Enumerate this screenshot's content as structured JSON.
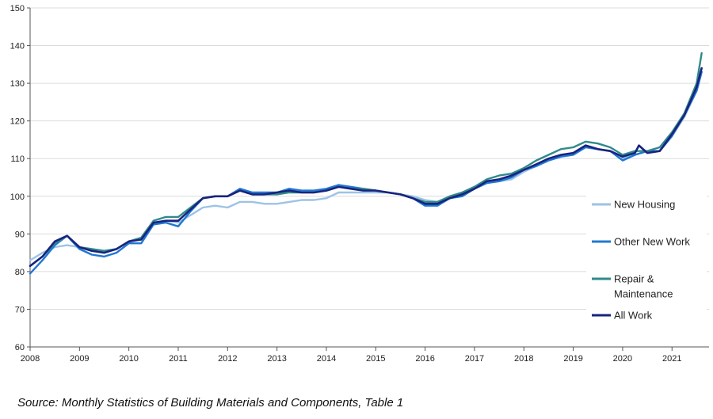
{
  "chart_data": {
    "type": "line",
    "x_range": [
      2008.0,
      2021.75
    ],
    "ylim": [
      60,
      150
    ],
    "y_ticks": [
      60,
      70,
      80,
      90,
      100,
      110,
      120,
      130,
      140,
      150
    ],
    "x_ticks": [
      2008,
      2009,
      2010,
      2011,
      2012,
      2013,
      2014,
      2015,
      2016,
      2017,
      2018,
      2019,
      2020,
      2021
    ],
    "x_tick_labels": [
      "2008",
      "2009",
      "2010",
      "2011",
      "2012",
      "2013",
      "2014",
      "2015",
      "2016",
      "2017",
      "2018",
      "2019",
      "2020",
      "2021"
    ],
    "grid": "horizontal",
    "legend_position": "right",
    "series": [
      {
        "name": "New Housing",
        "color": "#9dc3e6",
        "points": [
          [
            2008.0,
            83
          ],
          [
            2008.25,
            85
          ],
          [
            2008.5,
            86.5
          ],
          [
            2008.75,
            87
          ],
          [
            2009.0,
            86.5
          ],
          [
            2009.25,
            86
          ],
          [
            2009.5,
            85.5
          ],
          [
            2009.75,
            86
          ],
          [
            2010.0,
            88
          ],
          [
            2010.25,
            89
          ],
          [
            2010.5,
            93
          ],
          [
            2010.75,
            93.5
          ],
          [
            2011.0,
            93
          ],
          [
            2011.25,
            95
          ],
          [
            2011.5,
            97
          ],
          [
            2011.75,
            97.5
          ],
          [
            2012.0,
            97
          ],
          [
            2012.25,
            98.5
          ],
          [
            2012.5,
            98.5
          ],
          [
            2012.75,
            98
          ],
          [
            2013.0,
            98
          ],
          [
            2013.25,
            98.5
          ],
          [
            2013.5,
            99
          ],
          [
            2013.75,
            99
          ],
          [
            2014.0,
            99.5
          ],
          [
            2014.25,
            101
          ],
          [
            2014.5,
            101
          ],
          [
            2014.75,
            101
          ],
          [
            2015.0,
            101
          ],
          [
            2015.25,
            101
          ],
          [
            2015.5,
            100.5
          ],
          [
            2015.75,
            100
          ],
          [
            2016.0,
            99
          ],
          [
            2016.25,
            98.5
          ],
          [
            2016.5,
            99.5
          ],
          [
            2016.75,
            100.5
          ],
          [
            2017.0,
            102
          ],
          [
            2017.25,
            103.5
          ],
          [
            2017.5,
            104
          ],
          [
            2017.75,
            104.5
          ],
          [
            2018.0,
            106.5
          ],
          [
            2018.25,
            108
          ],
          [
            2018.5,
            109.5
          ],
          [
            2018.75,
            110.5
          ],
          [
            2019.0,
            111.5
          ],
          [
            2019.25,
            113
          ],
          [
            2019.5,
            112.5
          ],
          [
            2019.75,
            112
          ],
          [
            2020.0,
            110
          ],
          [
            2020.25,
            111
          ],
          [
            2020.5,
            112
          ],
          [
            2020.75,
            112
          ],
          [
            2021.0,
            116
          ],
          [
            2021.25,
            121
          ],
          [
            2021.5,
            128
          ],
          [
            2021.6,
            133
          ]
        ]
      },
      {
        "name": "Other New Work",
        "color": "#1f78d1",
        "points": [
          [
            2008.0,
            79.5
          ],
          [
            2008.25,
            83
          ],
          [
            2008.5,
            87
          ],
          [
            2008.75,
            89.5
          ],
          [
            2009.0,
            86
          ],
          [
            2009.25,
            84.5
          ],
          [
            2009.5,
            84
          ],
          [
            2009.75,
            85
          ],
          [
            2010.0,
            87.5
          ],
          [
            2010.25,
            87.5
          ],
          [
            2010.5,
            92.5
          ],
          [
            2010.75,
            93
          ],
          [
            2011.0,
            92
          ],
          [
            2011.25,
            96
          ],
          [
            2011.5,
            99.5
          ],
          [
            2011.75,
            100
          ],
          [
            2012.0,
            100
          ],
          [
            2012.25,
            102
          ],
          [
            2012.5,
            101
          ],
          [
            2012.75,
            101
          ],
          [
            2013.0,
            101
          ],
          [
            2013.25,
            102
          ],
          [
            2013.5,
            101.5
          ],
          [
            2013.75,
            101.5
          ],
          [
            2014.0,
            102
          ],
          [
            2014.25,
            103
          ],
          [
            2014.5,
            102.5
          ],
          [
            2014.75,
            102
          ],
          [
            2015.0,
            101.5
          ],
          [
            2015.25,
            101
          ],
          [
            2015.5,
            100.5
          ],
          [
            2015.75,
            99.5
          ],
          [
            2016.0,
            97.5
          ],
          [
            2016.25,
            97.5
          ],
          [
            2016.5,
            99.5
          ],
          [
            2016.75,
            100
          ],
          [
            2017.0,
            102
          ],
          [
            2017.25,
            103.5
          ],
          [
            2017.5,
            104
          ],
          [
            2017.75,
            105
          ],
          [
            2018.0,
            107
          ],
          [
            2018.25,
            108
          ],
          [
            2018.5,
            109.5
          ],
          [
            2018.75,
            110.5
          ],
          [
            2019.0,
            111
          ],
          [
            2019.25,
            113
          ],
          [
            2019.5,
            112.5
          ],
          [
            2019.75,
            112
          ],
          [
            2020.0,
            109.5
          ],
          [
            2020.25,
            111
          ],
          [
            2020.5,
            112
          ],
          [
            2020.75,
            112
          ],
          [
            2021.0,
            116
          ],
          [
            2021.25,
            121.5
          ],
          [
            2021.5,
            128
          ],
          [
            2021.6,
            133
          ]
        ]
      },
      {
        "name": "Repair & Maintenance",
        "color": "#2f8a8a",
        "points": [
          [
            2008.0,
            81.5
          ],
          [
            2008.25,
            84
          ],
          [
            2008.5,
            87.5
          ],
          [
            2008.75,
            89.5
          ],
          [
            2009.0,
            86.5
          ],
          [
            2009.25,
            86
          ],
          [
            2009.5,
            85.5
          ],
          [
            2009.75,
            86
          ],
          [
            2010.0,
            88
          ],
          [
            2010.25,
            89
          ],
          [
            2010.5,
            93.5
          ],
          [
            2010.75,
            94.5
          ],
          [
            2011.0,
            94.5
          ],
          [
            2011.25,
            97
          ],
          [
            2011.5,
            99.5
          ],
          [
            2011.75,
            100
          ],
          [
            2012.0,
            100
          ],
          [
            2012.25,
            101.5
          ],
          [
            2012.5,
            100.5
          ],
          [
            2012.75,
            100.5
          ],
          [
            2013.0,
            100.5
          ],
          [
            2013.25,
            101
          ],
          [
            2013.5,
            101
          ],
          [
            2013.75,
            101
          ],
          [
            2014.0,
            101.5
          ],
          [
            2014.25,
            102.5
          ],
          [
            2014.5,
            102
          ],
          [
            2014.75,
            102
          ],
          [
            2015.0,
            101.5
          ],
          [
            2015.25,
            101
          ],
          [
            2015.5,
            100.5
          ],
          [
            2015.75,
            99.5
          ],
          [
            2016.0,
            98.5
          ],
          [
            2016.25,
            98.5
          ],
          [
            2016.5,
            100
          ],
          [
            2016.75,
            101
          ],
          [
            2017.0,
            102.5
          ],
          [
            2017.25,
            104.5
          ],
          [
            2017.5,
            105.5
          ],
          [
            2017.75,
            106
          ],
          [
            2018.0,
            107.5
          ],
          [
            2018.25,
            109.5
          ],
          [
            2018.5,
            111
          ],
          [
            2018.75,
            112.5
          ],
          [
            2019.0,
            113
          ],
          [
            2019.25,
            114.5
          ],
          [
            2019.5,
            114
          ],
          [
            2019.75,
            113
          ],
          [
            2020.0,
            111
          ],
          [
            2020.25,
            112
          ],
          [
            2020.5,
            112
          ],
          [
            2020.75,
            113
          ],
          [
            2021.0,
            117
          ],
          [
            2021.25,
            122
          ],
          [
            2021.5,
            130
          ],
          [
            2021.6,
            138
          ]
        ]
      },
      {
        "name": "All Work",
        "color": "#1a237e",
        "points": [
          [
            2008.0,
            81.5
          ],
          [
            2008.25,
            84
          ],
          [
            2008.5,
            88
          ],
          [
            2008.75,
            89.5
          ],
          [
            2009.0,
            86.5
          ],
          [
            2009.25,
            85.5
          ],
          [
            2009.5,
            85
          ],
          [
            2009.75,
            86
          ],
          [
            2010.0,
            88
          ],
          [
            2010.25,
            88.5
          ],
          [
            2010.5,
            93
          ],
          [
            2010.75,
            93.5
          ],
          [
            2011.0,
            93.5
          ],
          [
            2011.25,
            96.5
          ],
          [
            2011.5,
            99.5
          ],
          [
            2011.75,
            100
          ],
          [
            2012.0,
            100
          ],
          [
            2012.25,
            101.5
          ],
          [
            2012.5,
            100.5
          ],
          [
            2012.75,
            100.5
          ],
          [
            2013.0,
            101
          ],
          [
            2013.25,
            101.5
          ],
          [
            2013.5,
            101
          ],
          [
            2013.75,
            101
          ],
          [
            2014.0,
            101.5
          ],
          [
            2014.25,
            102.5
          ],
          [
            2014.5,
            102
          ],
          [
            2014.75,
            101.5
          ],
          [
            2015.0,
            101.5
          ],
          [
            2015.25,
            101
          ],
          [
            2015.5,
            100.5
          ],
          [
            2015.75,
            99.5
          ],
          [
            2016.0,
            98
          ],
          [
            2016.25,
            98
          ],
          [
            2016.5,
            99.5
          ],
          [
            2016.75,
            100.5
          ],
          [
            2017.0,
            102
          ],
          [
            2017.25,
            104
          ],
          [
            2017.5,
            104.5
          ],
          [
            2017.75,
            105.5
          ],
          [
            2018.0,
            107
          ],
          [
            2018.25,
            108.5
          ],
          [
            2018.5,
            110
          ],
          [
            2018.75,
            111
          ],
          [
            2019.0,
            111.5
          ],
          [
            2019.25,
            113.5
          ],
          [
            2019.5,
            112.5
          ],
          [
            2019.75,
            112
          ],
          [
            2020.0,
            110.5
          ],
          [
            2020.25,
            111.5
          ],
          [
            2020.33,
            113.5
          ],
          [
            2020.5,
            111.5
          ],
          [
            2020.75,
            112
          ],
          [
            2021.0,
            116.5
          ],
          [
            2021.25,
            121.5
          ],
          [
            2021.5,
            129
          ],
          [
            2021.6,
            134
          ]
        ]
      }
    ]
  },
  "legend": {
    "items": [
      {
        "lines": [
          "New Housing"
        ],
        "color": "#9dc3e6"
      },
      {
        "lines": [
          "Other New Work"
        ],
        "color": "#1f78d1"
      },
      {
        "lines": [
          "Repair &",
          "Maintenance"
        ],
        "color": "#2f8a8a"
      },
      {
        "lines": [
          "All Work"
        ],
        "color": "#1a237e"
      }
    ]
  },
  "source_note": "Source: Monthly Statistics of Building Materials and Components, Table 1"
}
